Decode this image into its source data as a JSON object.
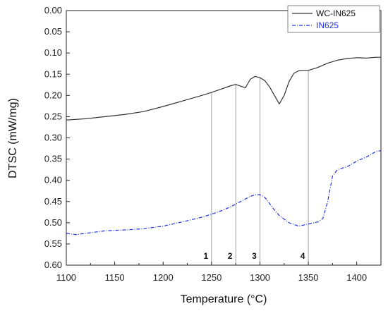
{
  "chart_data": {
    "type": "line",
    "xlabel": "Temperature (°C)",
    "ylabel": "DTSC (mW/mg)",
    "xlim": [
      1100,
      1425
    ],
    "ylim": [
      0.0,
      0.6
    ],
    "y_inverted": true,
    "x_ticks": [
      1100,
      1150,
      1200,
      1250,
      1300,
      1350,
      1400
    ],
    "y_ticks": [
      "0.00",
      "0.05",
      "0.10",
      "0.15",
      "0.20",
      "0.25",
      "0.30",
      "0.35",
      "0.40",
      "0.45",
      "0.50",
      "0.55",
      "0.60"
    ],
    "legend_position": "top-right",
    "series": [
      {
        "name": "WC-IN625",
        "color": "#333333",
        "style": "solid",
        "x": [
          1100,
          1120,
          1140,
          1160,
          1180,
          1200,
          1220,
          1240,
          1250,
          1260,
          1270,
          1275,
          1280,
          1285,
          1290,
          1295,
          1300,
          1305,
          1310,
          1315,
          1320,
          1325,
          1330,
          1335,
          1340,
          1345,
          1350,
          1360,
          1370,
          1380,
          1390,
          1400,
          1410,
          1420,
          1425
        ],
        "y": [
          0.258,
          0.255,
          0.25,
          0.245,
          0.238,
          0.226,
          0.213,
          0.2,
          0.193,
          0.185,
          0.177,
          0.174,
          0.178,
          0.182,
          0.162,
          0.155,
          0.158,
          0.165,
          0.18,
          0.2,
          0.22,
          0.2,
          0.168,
          0.148,
          0.142,
          0.141,
          0.141,
          0.134,
          0.124,
          0.117,
          0.113,
          0.111,
          0.112,
          0.11,
          0.11
        ]
      },
      {
        "name": "IN625",
        "color": "#2233dd",
        "style": "dash-dot",
        "x": [
          1100,
          1110,
          1120,
          1140,
          1160,
          1180,
          1200,
          1220,
          1240,
          1250,
          1260,
          1270,
          1280,
          1290,
          1295,
          1300,
          1305,
          1310,
          1315,
          1320,
          1330,
          1340,
          1350,
          1360,
          1365,
          1370,
          1375,
          1380,
          1390,
          1400,
          1410,
          1420,
          1425
        ],
        "y": [
          0.525,
          0.528,
          0.525,
          0.519,
          0.517,
          0.514,
          0.508,
          0.498,
          0.487,
          0.48,
          0.472,
          0.462,
          0.45,
          0.438,
          0.434,
          0.434,
          0.44,
          0.455,
          0.47,
          0.483,
          0.5,
          0.508,
          0.503,
          0.498,
          0.49,
          0.45,
          0.39,
          0.375,
          0.368,
          0.355,
          0.345,
          0.332,
          0.33
        ]
      }
    ],
    "markers": [
      {
        "label": "1",
        "x": 1250
      },
      {
        "label": "2",
        "x": 1275
      },
      {
        "label": "3",
        "x": 1300
      },
      {
        "label": "4",
        "x": 1350
      }
    ]
  }
}
